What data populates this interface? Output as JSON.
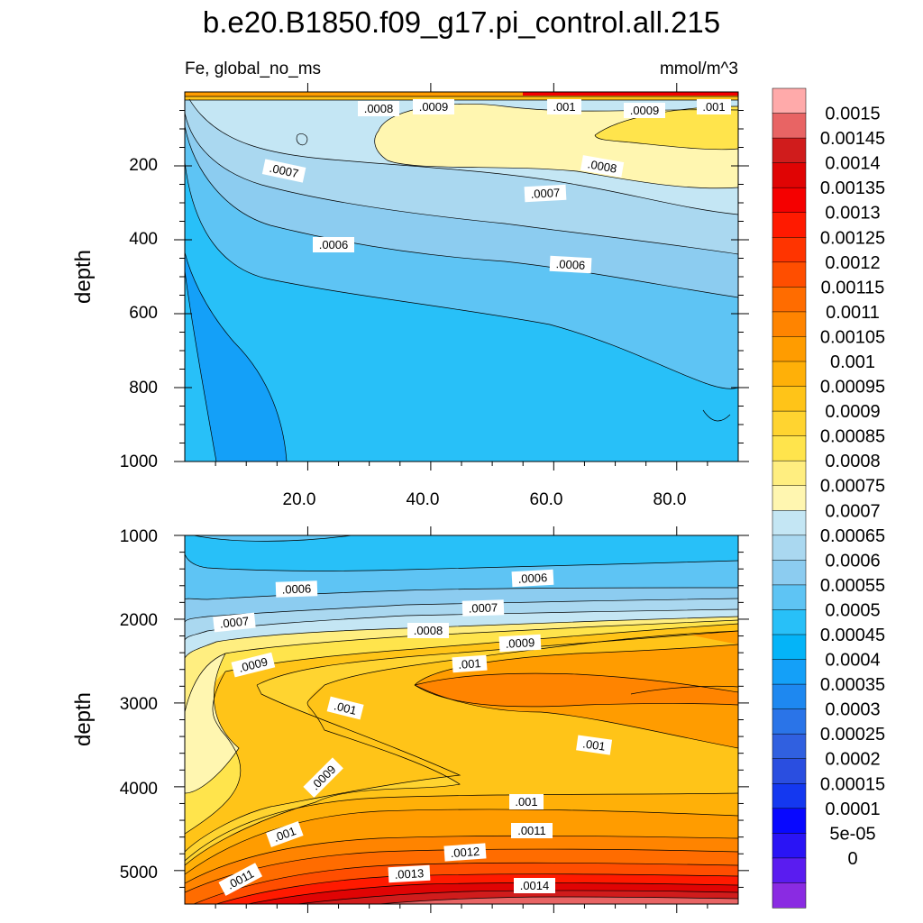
{
  "chart_data": {
    "type": "contour",
    "title": "b.e20.B1850.f09_g17.pi_control.all.215",
    "variable_label": "Fe, global_no_ms",
    "units_label": "mmol/m^3",
    "colorbar": {
      "levels": [
        "0",
        "5e-05",
        "0.0001",
        "0.00015",
        "0.0002",
        "0.00025",
        "0.0003",
        "0.00035",
        "0.0004",
        "0.00045",
        "0.0005",
        "0.00055",
        "0.0006",
        "0.00065",
        "0.0007",
        "0.00075",
        "0.0008",
        "0.00085",
        "0.0009",
        "0.00095",
        "0.001",
        "0.00105",
        "0.0011",
        "0.00115",
        "0.0012",
        "0.00125",
        "0.0013",
        "0.00135",
        "0.0014",
        "0.00145",
        "0.0015"
      ],
      "colors": [
        "#8a2be2",
        "#5a1cf0",
        "#2a14f5",
        "#0808ff",
        "#1438f0",
        "#2a4ee0",
        "#3060e0",
        "#2a74e8",
        "#1e88f0",
        "#14a0f8",
        "#04b4f8",
        "#28c0f8",
        "#5ec4f4",
        "#8cccf0",
        "#aad8f0",
        "#c4e6f4",
        "#fff6b0",
        "#ffee80",
        "#ffe44c",
        "#ffd430",
        "#ffc418",
        "#ffb008",
        "#ff9c00",
        "#ff8400",
        "#ff6c00",
        "#ff4e00",
        "#ff3400",
        "#ff1a00",
        "#f50000",
        "#e00404",
        "#d01c1c",
        "#e86464",
        "#ffaaaa"
      ]
    },
    "panels": [
      {
        "name": "upper",
        "ylabel": "depth",
        "ylim": [
          1000,
          0
        ],
        "yticks": [
          "200",
          "400",
          "600",
          "800",
          "1000"
        ],
        "xlim": [
          0,
          90
        ],
        "xticks": [
          "20.0",
          "40.0",
          "60.0",
          "80.0"
        ],
        "contour_labels": [
          ".0008",
          ".0009",
          ".001",
          ".0009",
          ".001",
          ".0007",
          ".0008",
          ".0007",
          ".0006",
          ".0006"
        ]
      },
      {
        "name": "lower",
        "ylabel": "depth",
        "ylim": [
          5400,
          1000
        ],
        "yticks": [
          "1000",
          "2000",
          "3000",
          "4000",
          "5000"
        ],
        "xlim": [
          0,
          90
        ],
        "contour_labels": [
          ".0006",
          ".0006",
          ".0007",
          ".0007",
          ".0008",
          ".0009",
          ".0009",
          ".001",
          ".001",
          ".001",
          ".0009",
          ".001",
          ".001",
          ".0011",
          ".0012",
          ".0013",
          ".0014",
          ".0011"
        ]
      }
    ]
  }
}
